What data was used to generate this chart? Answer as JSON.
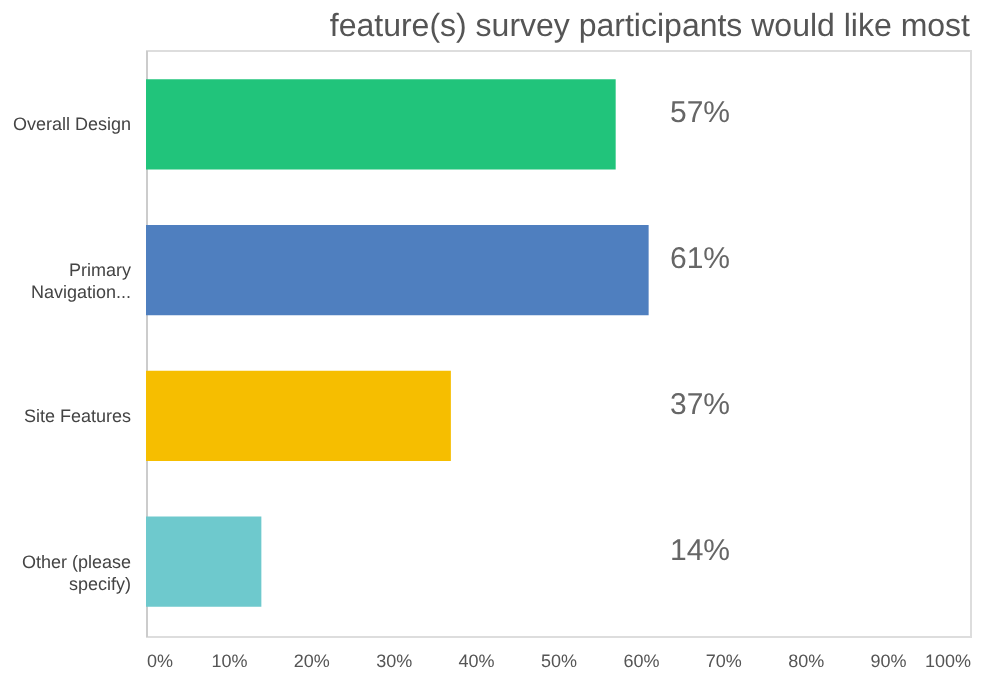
{
  "chart_data": {
    "type": "bar",
    "orientation": "horizontal",
    "title": "feature(s) survey participants would like most",
    "categories": [
      "Overall Design",
      "Primary\nNavigation...",
      "Site Features",
      "Other (please\nspecify)"
    ],
    "values": [
      57,
      61,
      37,
      14
    ],
    "colors": [
      "#21c47b",
      "#4f7fbf",
      "#f6be00",
      "#6ec9cd"
    ],
    "value_labels": [
      "57%",
      "61%",
      "37%",
      "14%"
    ],
    "xlim": [
      0,
      100
    ],
    "xticks": [
      {
        "value": 0,
        "label": "0%"
      },
      {
        "value": 10,
        "label": "10%"
      },
      {
        "value": 20,
        "label": "20%"
      },
      {
        "value": 30,
        "label": "30%"
      },
      {
        "value": 40,
        "label": "40%"
      },
      {
        "value": 50,
        "label": "50%"
      },
      {
        "value": 60,
        "label": "60%"
      },
      {
        "value": 70,
        "label": "70%"
      },
      {
        "value": 80,
        "label": "80%"
      },
      {
        "value": 90,
        "label": "90%"
      },
      {
        "value": 100,
        "label": "100%"
      }
    ],
    "grid": false
  }
}
